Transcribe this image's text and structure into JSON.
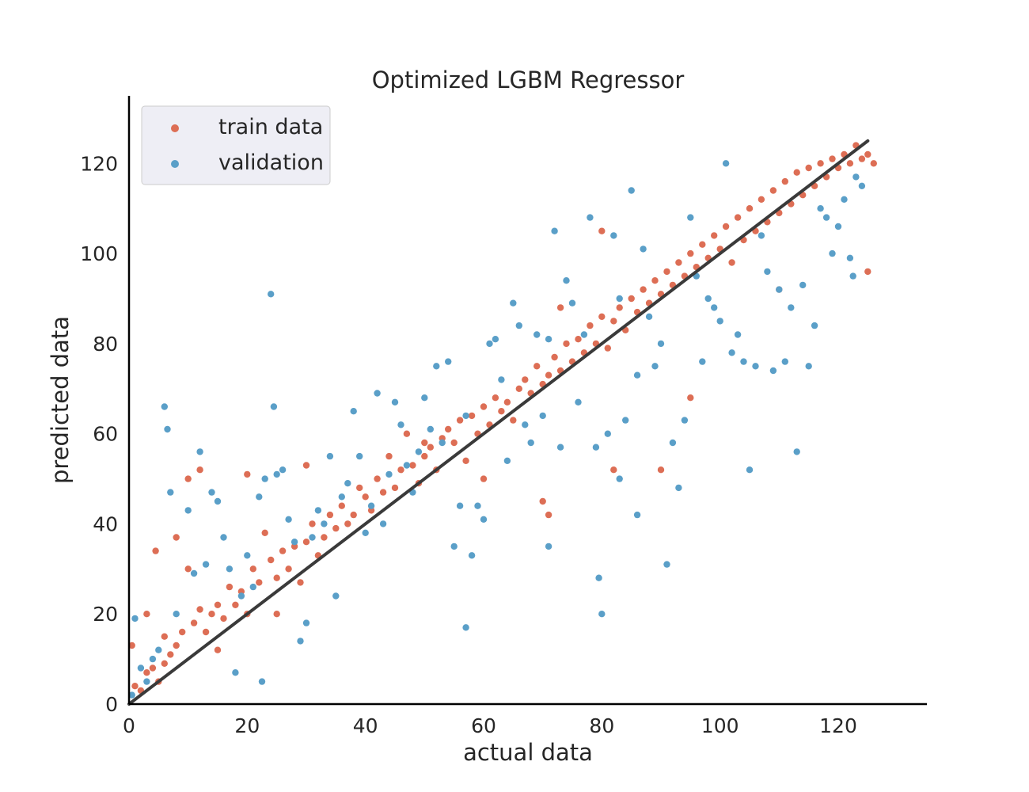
{
  "chart_data": {
    "type": "scatter",
    "title": "Optimized LGBM Regressor",
    "xlabel": "actual data",
    "ylabel": "predicted data",
    "xlim": [
      0,
      135
    ],
    "ylim": [
      0,
      135
    ],
    "xticks": [
      0,
      20,
      40,
      60,
      80,
      100,
      120
    ],
    "yticks": [
      0,
      20,
      40,
      60,
      80,
      100,
      120
    ],
    "grid": false,
    "legend_position": "top-left",
    "reference_line": {
      "x": [
        0,
        125
      ],
      "y": [
        0,
        125
      ],
      "color": "#3a3a3a"
    },
    "series": [
      {
        "name": "train data",
        "color": "#dd6e55",
        "points": [
          [
            0.5,
            13
          ],
          [
            1,
            4
          ],
          [
            2,
            3
          ],
          [
            3,
            7
          ],
          [
            4,
            8
          ],
          [
            4.5,
            34
          ],
          [
            5,
            5
          ],
          [
            6,
            9
          ],
          [
            7,
            11
          ],
          [
            8,
            13
          ],
          [
            9,
            16
          ],
          [
            10,
            30
          ],
          [
            11,
            18
          ],
          [
            12,
            21
          ],
          [
            13,
            16
          ],
          [
            14,
            20
          ],
          [
            15,
            22
          ],
          [
            16,
            19
          ],
          [
            17,
            26
          ],
          [
            18,
            22
          ],
          [
            19,
            25
          ],
          [
            20,
            20
          ],
          [
            21,
            30
          ],
          [
            22,
            27
          ],
          [
            23,
            38
          ],
          [
            24,
            32
          ],
          [
            25,
            28
          ],
          [
            26,
            34
          ],
          [
            27,
            30
          ],
          [
            28,
            35
          ],
          [
            29,
            27
          ],
          [
            30,
            36
          ],
          [
            31,
            40
          ],
          [
            32,
            33
          ],
          [
            33,
            37
          ],
          [
            34,
            42
          ],
          [
            35,
            39
          ],
          [
            36,
            44
          ],
          [
            37,
            40
          ],
          [
            38,
            42
          ],
          [
            39,
            48
          ],
          [
            40,
            46
          ],
          [
            41,
            43
          ],
          [
            42,
            50
          ],
          [
            43,
            47
          ],
          [
            44,
            55
          ],
          [
            45,
            48
          ],
          [
            46,
            52
          ],
          [
            47,
            60
          ],
          [
            48,
            53
          ],
          [
            49,
            49
          ],
          [
            50,
            55
          ],
          [
            51,
            57
          ],
          [
            52,
            52
          ],
          [
            53,
            59
          ],
          [
            54,
            61
          ],
          [
            55,
            58
          ],
          [
            56,
            63
          ],
          [
            57,
            54
          ],
          [
            58,
            64
          ],
          [
            59,
            60
          ],
          [
            60,
            66
          ],
          [
            61,
            62
          ],
          [
            62,
            68
          ],
          [
            63,
            65
          ],
          [
            64,
            67
          ],
          [
            65,
            63
          ],
          [
            66,
            70
          ],
          [
            67,
            72
          ],
          [
            68,
            69
          ],
          [
            69,
            75
          ],
          [
            70,
            71
          ],
          [
            71,
            73
          ],
          [
            72,
            77
          ],
          [
            73,
            74
          ],
          [
            74,
            80
          ],
          [
            75,
            76
          ],
          [
            76,
            81
          ],
          [
            77,
            78
          ],
          [
            78,
            84
          ],
          [
            79,
            80
          ],
          [
            80,
            86
          ],
          [
            81,
            79
          ],
          [
            82,
            85
          ],
          [
            83,
            88
          ],
          [
            84,
            83
          ],
          [
            85,
            90
          ],
          [
            86,
            87
          ],
          [
            87,
            92
          ],
          [
            88,
            89
          ],
          [
            89,
            94
          ],
          [
            90,
            91
          ],
          [
            91,
            96
          ],
          [
            92,
            93
          ],
          [
            93,
            98
          ],
          [
            94,
            95
          ],
          [
            95,
            100
          ],
          [
            96,
            97
          ],
          [
            97,
            102
          ],
          [
            98,
            99
          ],
          [
            99,
            104
          ],
          [
            100,
            101
          ],
          [
            101,
            106
          ],
          [
            102,
            98
          ],
          [
            103,
            108
          ],
          [
            104,
            103
          ],
          [
            105,
            110
          ],
          [
            106,
            105
          ],
          [
            107,
            112
          ],
          [
            108,
            107
          ],
          [
            109,
            114
          ],
          [
            110,
            109
          ],
          [
            111,
            116
          ],
          [
            112,
            111
          ],
          [
            113,
            118
          ],
          [
            114,
            113
          ],
          [
            115,
            119
          ],
          [
            116,
            115
          ],
          [
            117,
            120
          ],
          [
            118,
            117
          ],
          [
            119,
            121
          ],
          [
            120,
            119
          ],
          [
            121,
            122
          ],
          [
            122,
            120
          ],
          [
            123,
            124
          ],
          [
            124,
            121
          ],
          [
            125,
            122
          ],
          [
            126,
            120
          ],
          [
            10,
            50
          ],
          [
            12,
            52
          ],
          [
            20,
            51
          ],
          [
            8,
            37
          ],
          [
            30,
            53
          ],
          [
            50,
            58
          ],
          [
            70,
            45
          ],
          [
            71,
            42
          ],
          [
            82,
            52
          ],
          [
            90,
            52
          ],
          [
            95,
            68
          ],
          [
            110,
            92
          ],
          [
            125,
            96
          ],
          [
            80,
            105
          ],
          [
            73,
            88
          ],
          [
            60,
            50
          ],
          [
            3,
            20
          ],
          [
            6,
            15
          ],
          [
            15,
            12
          ],
          [
            25,
            20
          ]
        ]
      },
      {
        "name": "validation",
        "color": "#5a9fc8",
        "points": [
          [
            0.5,
            2
          ],
          [
            1,
            19
          ],
          [
            2,
            8
          ],
          [
            3,
            5
          ],
          [
            4,
            10
          ],
          [
            5,
            12
          ],
          [
            6,
            66
          ],
          [
            6.5,
            61
          ],
          [
            7,
            47
          ],
          [
            8,
            20
          ],
          [
            10,
            43
          ],
          [
            11,
            29
          ],
          [
            12,
            56
          ],
          [
            13,
            31
          ],
          [
            14,
            47
          ],
          [
            15,
            45
          ],
          [
            16,
            37
          ],
          [
            17,
            30
          ],
          [
            18,
            7
          ],
          [
            19,
            24
          ],
          [
            20,
            33
          ],
          [
            21,
            26
          ],
          [
            22,
            46
          ],
          [
            22.5,
            5
          ],
          [
            23,
            50
          ],
          [
            24,
            91
          ],
          [
            24.5,
            66
          ],
          [
            25,
            51
          ],
          [
            26,
            52
          ],
          [
            27,
            41
          ],
          [
            28,
            36
          ],
          [
            29,
            14
          ],
          [
            30,
            18
          ],
          [
            31,
            37
          ],
          [
            32,
            43
          ],
          [
            33,
            40
          ],
          [
            34,
            55
          ],
          [
            35,
            24
          ],
          [
            36,
            46
          ],
          [
            37,
            49
          ],
          [
            38,
            65
          ],
          [
            39,
            55
          ],
          [
            40,
            38
          ],
          [
            41,
            44
          ],
          [
            42,
            69
          ],
          [
            43,
            40
          ],
          [
            44,
            51
          ],
          [
            45,
            67
          ],
          [
            46,
            62
          ],
          [
            47,
            53
          ],
          [
            48,
            47
          ],
          [
            49,
            56
          ],
          [
            50,
            68
          ],
          [
            51,
            61
          ],
          [
            52,
            75
          ],
          [
            53,
            58
          ],
          [
            54,
            76
          ],
          [
            55,
            35
          ],
          [
            56,
            44
          ],
          [
            57,
            64
          ],
          [
            58,
            33
          ],
          [
            59,
            44
          ],
          [
            60,
            41
          ],
          [
            61,
            80
          ],
          [
            62,
            81
          ],
          [
            63,
            72
          ],
          [
            64,
            54
          ],
          [
            65,
            89
          ],
          [
            66,
            84
          ],
          [
            67,
            62
          ],
          [
            68,
            58
          ],
          [
            69,
            82
          ],
          [
            70,
            64
          ],
          [
            71,
            81
          ],
          [
            72,
            105
          ],
          [
            73,
            57
          ],
          [
            74,
            94
          ],
          [
            75,
            89
          ],
          [
            76,
            67
          ],
          [
            77,
            82
          ],
          [
            78,
            108
          ],
          [
            79,
            57
          ],
          [
            79.5,
            28
          ],
          [
            80,
            20
          ],
          [
            81,
            60
          ],
          [
            82,
            104
          ],
          [
            83,
            90
          ],
          [
            84,
            63
          ],
          [
            85,
            114
          ],
          [
            86,
            73
          ],
          [
            87,
            101
          ],
          [
            88,
            86
          ],
          [
            89,
            75
          ],
          [
            90,
            80
          ],
          [
            91,
            31
          ],
          [
            92,
            58
          ],
          [
            93,
            48
          ],
          [
            94,
            63
          ],
          [
            95,
            108
          ],
          [
            96,
            95
          ],
          [
            97,
            76
          ],
          [
            98,
            90
          ],
          [
            99,
            88
          ],
          [
            100,
            85
          ],
          [
            101,
            120
          ],
          [
            102,
            78
          ],
          [
            103,
            82
          ],
          [
            104,
            76
          ],
          [
            105,
            52
          ],
          [
            106,
            75
          ],
          [
            107,
            104
          ],
          [
            108,
            96
          ],
          [
            109,
            74
          ],
          [
            110,
            92
          ],
          [
            111,
            76
          ],
          [
            112,
            88
          ],
          [
            113,
            56
          ],
          [
            114,
            93
          ],
          [
            115,
            75
          ],
          [
            116,
            84
          ],
          [
            117,
            110
          ],
          [
            118,
            108
          ],
          [
            119,
            100
          ],
          [
            120,
            106
          ],
          [
            121,
            112
          ],
          [
            122,
            99
          ],
          [
            122.5,
            95
          ],
          [
            123,
            117
          ],
          [
            124,
            115
          ],
          [
            57,
            17
          ],
          [
            71,
            35
          ],
          [
            83,
            50
          ],
          [
            86,
            42
          ]
        ]
      }
    ]
  }
}
